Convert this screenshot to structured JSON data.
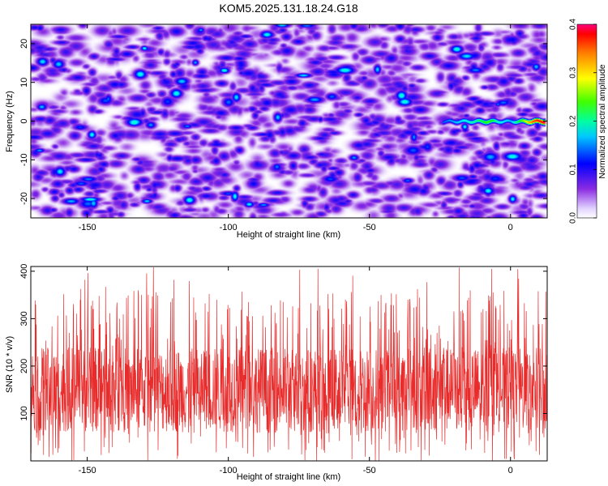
{
  "title": "KOM5.2025.131.18.24.G18",
  "colors": {
    "background": "#ffffff",
    "snr_line": "#e82c2c",
    "spectrogram_base": "#ffffff",
    "spectrogram_noise": "#7a3fe0",
    "signal_peak": "#e81010"
  },
  "chart_data": [
    {
      "type": "heatmap",
      "xlabel": "Height of straight line (km)",
      "ylabel": "Frequency (Hz)",
      "xlim": [
        -170,
        13
      ],
      "ylim": [
        -25,
        25
      ],
      "xticks": [
        "-150",
        "-100",
        "-50",
        "0"
      ],
      "xtick_values": [
        -150,
        -100,
        -50,
        0
      ],
      "yticks": [
        "20",
        "10",
        "0",
        "-10",
        "-20"
      ],
      "ytick_values": [
        20,
        10,
        0,
        -10,
        -20
      ],
      "colorbar": {
        "label": "Normalized spectral amplitude",
        "range": [
          0.0,
          0.4
        ],
        "ticks": [
          "0.0",
          "0.1",
          "0.2",
          "0.3",
          "0.4"
        ],
        "tick_values": [
          0.0,
          0.1,
          0.2,
          0.3,
          0.4
        ],
        "colormap": [
          "#ffffff",
          "#8a2be2",
          "#0000ff",
          "#00ffff",
          "#00ff00",
          "#ffff00",
          "#ff8000",
          "#ff0000",
          "#ff0088"
        ]
      },
      "noise_level": 0.05,
      "signal_trace": {
        "frequency": 0,
        "x_points": [
          -24,
          -20,
          -16,
          -12,
          -8,
          -4,
          0,
          4,
          8,
          12
        ],
        "amplitudes": [
          0.12,
          0.14,
          0.16,
          0.18,
          0.22,
          0.16,
          0.14,
          0.22,
          0.33,
          0.38
        ]
      },
      "grid": false
    },
    {
      "type": "line",
      "xlabel": "Height of straight line (km)",
      "ylabel": "SNR (10 * v/v)",
      "xlim": [
        -170,
        13
      ],
      "ylim": [
        0,
        410
      ],
      "xticks": [
        "-150",
        "-100",
        "-50",
        "0"
      ],
      "xtick_values": [
        -150,
        -100,
        -50,
        0
      ],
      "yticks": [
        "400",
        "300",
        "200",
        "100"
      ],
      "ytick_values": [
        400,
        300,
        200,
        100
      ],
      "series": [
        {
          "typical_low": 60,
          "typical_high": 240,
          "peak_max": 410,
          "min": 0
        }
      ],
      "grid": false
    }
  ]
}
